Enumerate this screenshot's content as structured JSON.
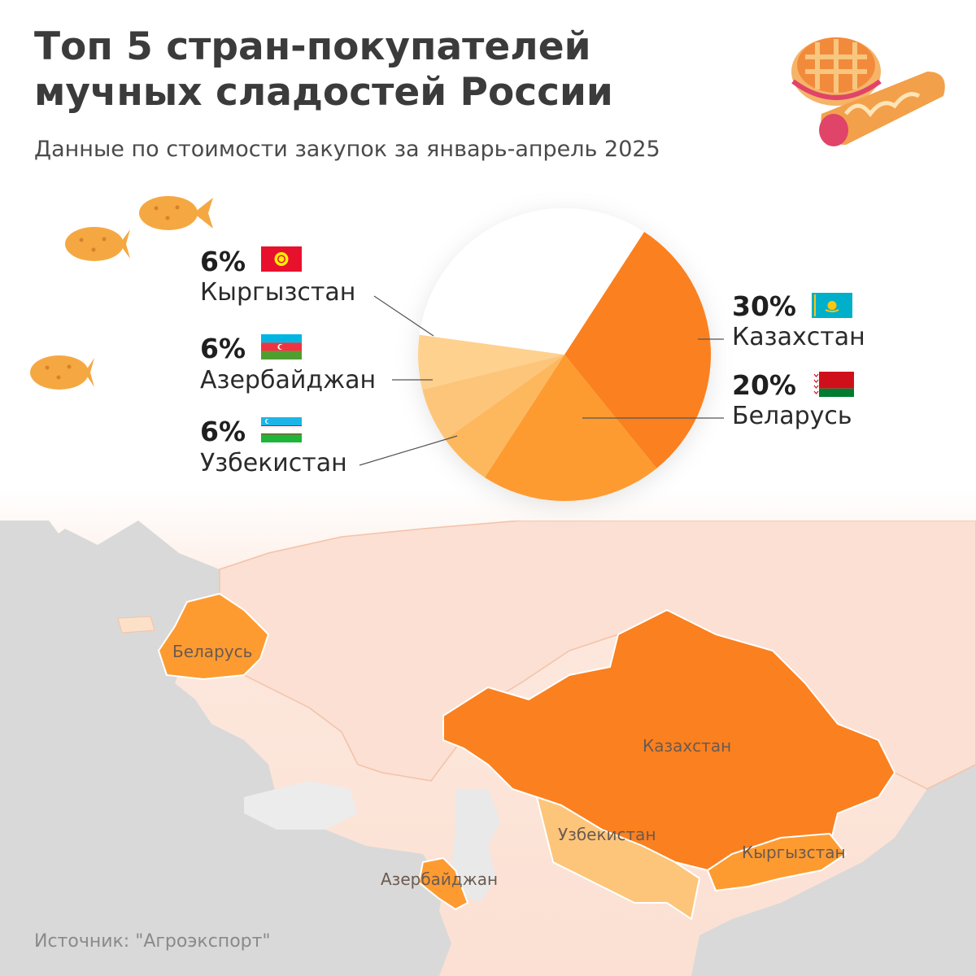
{
  "title_line1": "Топ 5 стран-покупателей",
  "title_line2": "мучных сладостей России",
  "subtitle": "Данные по стоимости закупок за январь-апрель 2025",
  "source": "Источник: \"Агроэкспорт\"",
  "colors": {
    "kazakhstan": "#fb801f",
    "belarus": "#fd9b31",
    "uzbekistan": "#fdb85e",
    "azerbaijan": "#fdc57a",
    "kyrgyzstan": "#fed18f",
    "other": "#ffffff",
    "map_land": "#d9d9d9",
    "map_russia": "#fbe0d3"
  },
  "chart_data": {
    "type": "pie",
    "title": "Топ 5 стран-покупателей мучных сладостей России",
    "subtitle": "Данные по стоимости закупок за январь-апрель 2025",
    "slices": [
      {
        "label": "Казахстан",
        "value": 30,
        "pct_label": "30%",
        "flag": "kazakhstan-flag-icon"
      },
      {
        "label": "Беларусь",
        "value": 20,
        "pct_label": "20%",
        "flag": "belarus-flag-icon"
      },
      {
        "label": "Узбекистан",
        "value": 6,
        "pct_label": "6%",
        "flag": "uzbekistan-flag-icon"
      },
      {
        "label": "Азербайджан",
        "value": 6,
        "pct_label": "6%",
        "flag": "azerbaijan-flag-icon"
      },
      {
        "label": "Кыргызстан",
        "value": 6,
        "pct_label": "6%",
        "flag": "kyrgyzstan-flag-icon"
      },
      {
        "label": "",
        "value": 32
      }
    ]
  },
  "map_labels": {
    "belarus": "Беларусь",
    "kazakhstan": "Казахстан",
    "uzbekistan": "Узбекистан",
    "kyrgyzstan": "Кыргызстан",
    "azerbaijan": "Азербайджан"
  }
}
